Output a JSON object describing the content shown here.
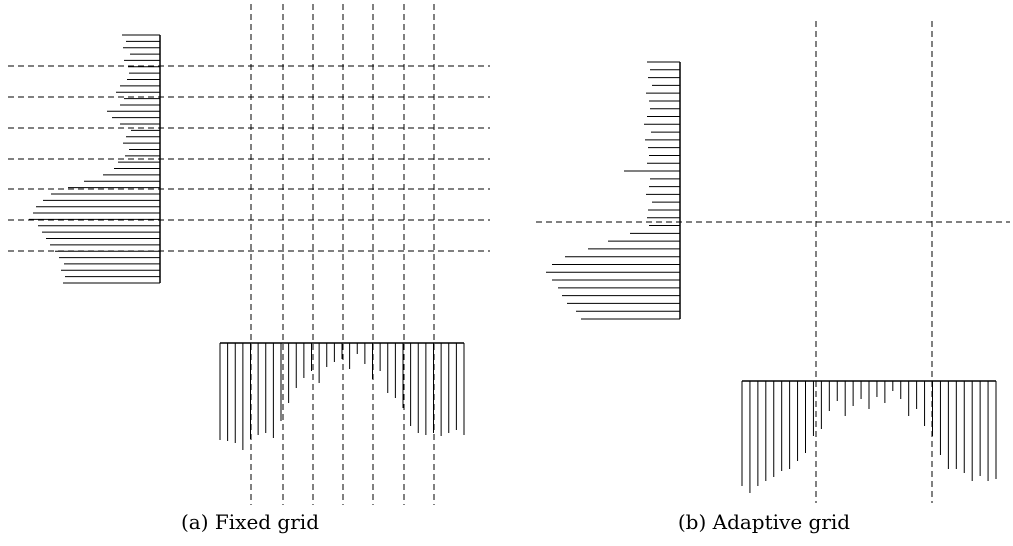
{
  "figure": {
    "panels": [
      {
        "id": "a",
        "caption": "(a) Fixed grid"
      },
      {
        "id": "b",
        "caption": "(b) Adaptive grid"
      }
    ]
  },
  "colors": {
    "ink": "#000000",
    "background": "#ffffff"
  }
}
